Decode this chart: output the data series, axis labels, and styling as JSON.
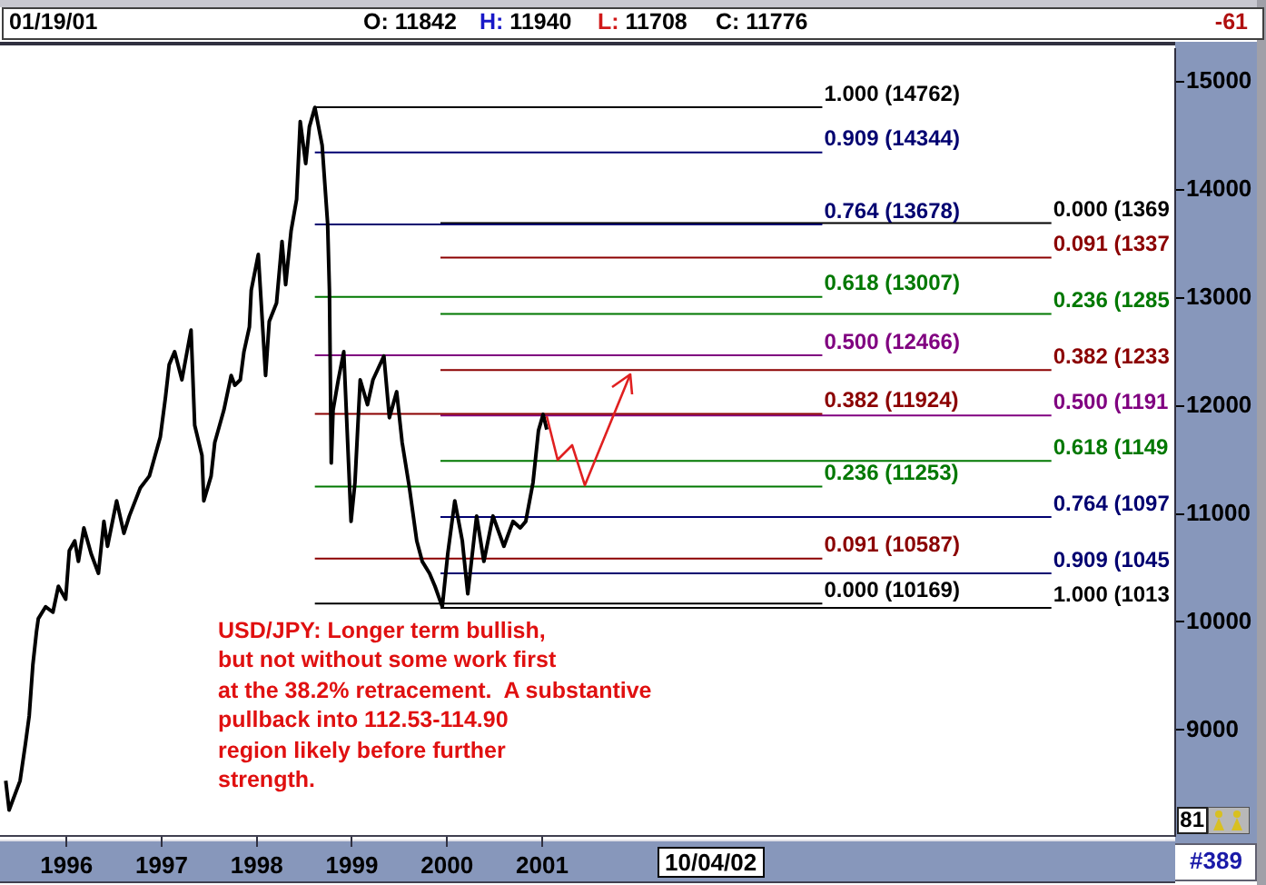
{
  "chart_data": {
    "type": "line",
    "annotations": [
      "01/19/01",
      "O: 11842",
      "H: 11940",
      "L: 11708",
      "C: 11776",
      "-61",
      "USD/JPY: Longer term bullish,\nbut not without some work first\nat the 38.2% retracement.  A substantive\npullback into 112.53-114.90\nregion likely before further\nstrength.",
      "10/04/02",
      "81",
      "#389",
      {
        "text": "0.000 (1369",
        "x": "2006-05-10",
        "y": 13690
      },
      {
        "text": "0.091 (1337",
        "x": "2006-05-10",
        "y": 13370
      },
      {
        "text": "0.236 (1285",
        "x": "2006-05-10",
        "y": 12850
      },
      {
        "text": "0.382 (1233",
        "x": "2006-05-10",
        "y": 12330
      },
      {
        "text": "0.500 (1191",
        "x": "2006-05-10",
        "y": 11910
      },
      {
        "text": "0.618 (1149",
        "x": "2006-05-10",
        "y": 11490
      },
      {
        "text": "0.764 (1097",
        "x": "2006-05-10",
        "y": 10970
      },
      {
        "text": "0.909 (1045",
        "x": "2006-05-10",
        "y": 10450
      },
      {
        "text": "1.000 (1013",
        "x": "2006-05-10",
        "y": 10130
      }
    ],
    "xlim": [
      "1995-04-21",
      "2007-08-28"
    ],
    "xticks": [
      "1996",
      "1997",
      "1998",
      "1999",
      "2000",
      "2001"
    ],
    "ylim": [
      8020,
      15300
    ],
    "yticks": [
      9000,
      10000,
      11000,
      12000,
      13000,
      14000,
      15000
    ],
    "grid": false,
    "legend": false,
    "marker": "none",
    "series": [
      {
        "color": "#000000",
        "x": [
          "1995-05-13",
          "1995-05-26",
          "1995-07-07",
          "1995-07-28",
          "1995-08-11",
          "1995-08-25",
          "1995-09-08",
          "1995-09-15",
          "1995-10-13",
          "1995-11-10",
          "1995-12-01",
          "1995-12-29",
          "1996-01-12",
          "1996-02-02",
          "1996-02-16",
          "1996-03-08",
          "1996-04-05",
          "1996-05-03",
          "1996-05-24",
          "1996-06-07",
          "1996-07-12",
          "1996-08-09",
          "1996-08-30",
          "1996-10-11",
          "1996-11-15",
          "1996-12-27",
          "1997-01-16",
          "1997-01-30",
          "1997-02-20",
          "1997-03-20",
          "1997-04-17",
          "1997-04-24",
          "1997-05-08",
          "1997-06-05",
          "1997-06-12",
          "1997-07-10",
          "1997-07-24",
          "1997-08-28",
          "1997-09-25",
          "1997-10-09",
          "1997-10-30",
          "1997-11-13",
          "1997-12-04",
          "1997-12-11",
          "1998-01-07",
          "1998-02-04",
          "1998-02-18",
          "1998-03-18",
          "1998-04-08",
          "1998-04-22",
          "1998-05-13",
          "1998-06-03",
          "1998-06-17",
          "1998-07-08",
          "1998-07-22",
          "1998-08-12",
          "1998-09-09",
          "1998-09-30",
          "1998-10-07",
          "1998-10-14",
          "1998-10-21",
          "1998-11-10",
          "1998-12-01",
          "1998-12-29",
          "1999-01-13",
          "1999-02-02",
          "1999-03-02",
          "1999-03-23",
          "1999-05-04",
          "1999-05-25",
          "1999-06-22",
          "1999-07-13",
          "1999-08-10",
          "1999-09-07",
          "1999-09-28",
          "1999-10-26",
          "1999-11-16",
          "1999-12-14",
          "2000-01-04",
          "2000-01-31",
          "2000-02-29",
          "2000-03-21",
          "2000-04-24",
          "2000-05-22",
          "2000-06-26",
          "2000-08-07",
          "2000-09-11",
          "2000-10-09",
          "2000-10-30",
          "2000-11-27",
          "2000-12-18",
          "2001-01-05",
          "2001-01-19"
        ],
        "values": [
          8530,
          8260,
          8530,
          8880,
          9130,
          9600,
          9910,
          10030,
          10140,
          10090,
          10330,
          10210,
          10660,
          10750,
          10560,
          10870,
          10630,
          10450,
          10930,
          10700,
          11120,
          10820,
          10980,
          11240,
          11350,
          11710,
          12080,
          12380,
          12500,
          12240,
          12610,
          12700,
          11820,
          11540,
          11120,
          11350,
          11660,
          11960,
          12280,
          12190,
          12240,
          12500,
          12730,
          13070,
          13400,
          12280,
          12780,
          12950,
          13520,
          13120,
          13620,
          13910,
          14630,
          14240,
          14580,
          14760,
          14410,
          13690,
          13070,
          11470,
          11960,
          12240,
          12500,
          10930,
          11290,
          12240,
          12010,
          12240,
          12460,
          11890,
          12130,
          11660,
          11240,
          10750,
          10560,
          10450,
          10330,
          10140,
          10630,
          11120,
          10750,
          10260,
          10980,
          10560,
          10980,
          10700,
          10930,
          10870,
          10930,
          11290,
          11770,
          11920,
          11780
        ]
      },
      {
        "name": "1.000 (14762)",
        "color": "#000000",
        "x": [
          "1998-08-12",
          "2003-12-12"
        ],
        "values": [
          14762,
          14762
        ]
      },
      {
        "name": "0.909 (14344)",
        "color": "#000070",
        "x": [
          "1998-08-12",
          "2003-12-12"
        ],
        "values": [
          14344,
          14344
        ]
      },
      {
        "name": "0.764 (13678)",
        "color": "#000070",
        "x": [
          "1998-08-12",
          "2003-12-12"
        ],
        "values": [
          13678,
          13678
        ]
      },
      {
        "name": "0.618 (13007)",
        "color": "#007800",
        "x": [
          "1998-08-12",
          "2003-12-12"
        ],
        "values": [
          13007,
          13007
        ]
      },
      {
        "name": "0.500 (12466)",
        "color": "#800080",
        "x": [
          "1998-08-12",
          "2003-12-12"
        ],
        "values": [
          12466,
          12466
        ]
      },
      {
        "name": "0.382 (11924)",
        "color": "#8b0000",
        "x": [
          "1998-08-12",
          "2003-12-12"
        ],
        "values": [
          11924,
          11924
        ]
      },
      {
        "name": "0.236 (11253)",
        "color": "#007800",
        "x": [
          "1998-08-12",
          "2003-12-12"
        ],
        "values": [
          11253,
          11253
        ]
      },
      {
        "name": "0.091 (10587)",
        "color": "#8b0000",
        "x": [
          "1998-08-12",
          "2003-12-12"
        ],
        "values": [
          10587,
          10587
        ]
      },
      {
        "name": "0.000 (10169)",
        "color": "#000000",
        "x": [
          "1998-08-12",
          "2003-12-12"
        ],
        "values": [
          10169,
          10169
        ]
      },
      {
        "color": "#000000",
        "x": [
          "1999-12-07",
          "2006-05-10"
        ],
        "values": [
          13690,
          13690
        ]
      },
      {
        "color": "#8b0000",
        "x": [
          "1999-12-07",
          "2006-05-10"
        ],
        "values": [
          13370,
          13370
        ]
      },
      {
        "color": "#007800",
        "x": [
          "1999-12-07",
          "2006-05-10"
        ],
        "values": [
          12850,
          12850
        ]
      },
      {
        "color": "#8b0000",
        "x": [
          "1999-12-07",
          "2006-05-10"
        ],
        "values": [
          12330,
          12330
        ]
      },
      {
        "color": "#800080",
        "x": [
          "1999-12-07",
          "2006-05-10"
        ],
        "values": [
          11910,
          11910
        ]
      },
      {
        "color": "#007800",
        "x": [
          "1999-12-07",
          "2006-05-10"
        ],
        "values": [
          11490,
          11490
        ]
      },
      {
        "color": "#000070",
        "x": [
          "1999-12-07",
          "2006-05-10"
        ],
        "values": [
          10970,
          10970
        ]
      },
      {
        "color": "#000070",
        "x": [
          "1999-12-07",
          "2006-05-10"
        ],
        "values": [
          10450,
          10450
        ]
      },
      {
        "color": "#000000",
        "x": [
          "1999-12-07",
          "2006-05-10"
        ],
        "values": [
          10130,
          10130
        ]
      }
    ]
  }
}
